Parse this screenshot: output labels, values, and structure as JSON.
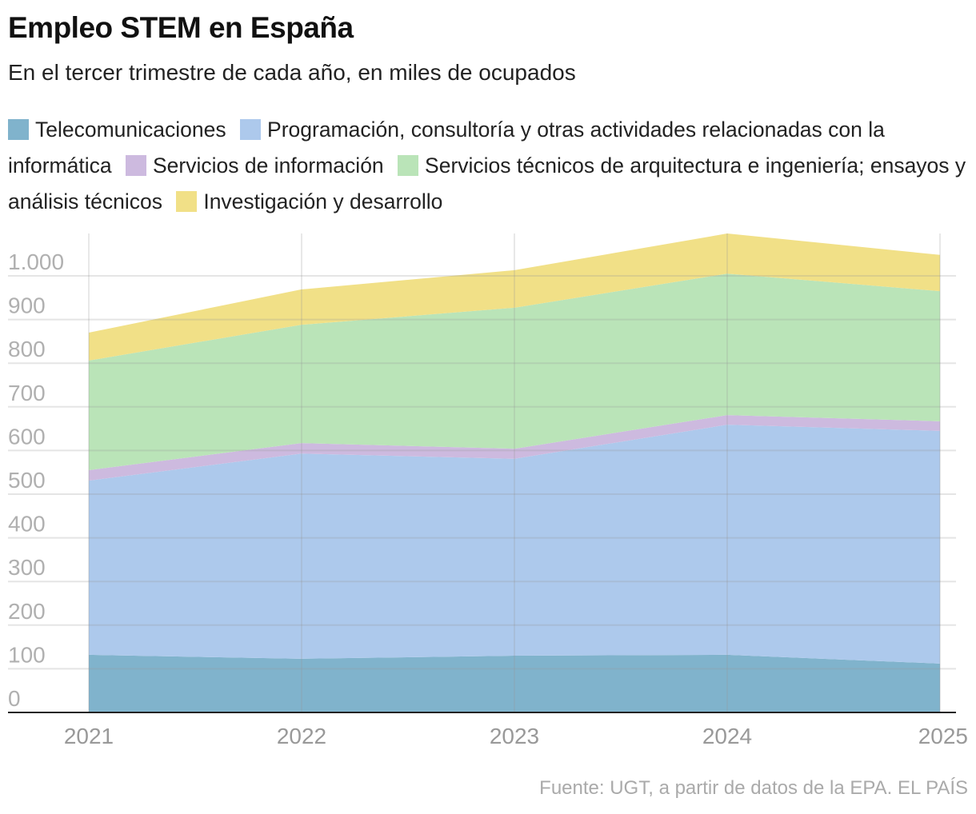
{
  "title": "Empleo STEM en España",
  "subtitle": "En el tercer trimestre de cada año, en miles de ocupados",
  "source": "Fuente: UGT, a partir de datos de la EPA. EL PAÍS",
  "chart_data": {
    "type": "area",
    "stacked": true,
    "categories": [
      "2021",
      "2022",
      "2023",
      "2024",
      "2025"
    ],
    "ylim": [
      0,
      1100
    ],
    "yticks": [
      0,
      100,
      200,
      300,
      400,
      500,
      600,
      700,
      800,
      900,
      1000
    ],
    "ytick_labels": [
      "0",
      "100",
      "200",
      "300",
      "400",
      "500",
      "600",
      "700",
      "800",
      "900",
      "1.000"
    ],
    "grid": true,
    "legend_position": "top",
    "series": [
      {
        "name": "Telecomunicaciones",
        "color": "#80b3cc",
        "values": [
          132,
          123,
          130,
          132,
          112
        ]
      },
      {
        "name": "Programación, consultoría y otras actividades relacionadas con la informática",
        "color": "#adc9ec",
        "values": [
          399,
          470,
          451,
          527,
          533
        ]
      },
      {
        "name": "Servicios de información",
        "color": "#cdbadf",
        "values": [
          24,
          24,
          23,
          22,
          22
        ]
      },
      {
        "name": "Servicios técnicos de arquitectura e ingeniería; ensayos y análisis técnicos",
        "color": "#bae4b8",
        "values": [
          251,
          271,
          323,
          324,
          298
        ]
      },
      {
        "name": "Investigación y desarrollo",
        "color": "#f1e087",
        "values": [
          64,
          81,
          86,
          92,
          83
        ]
      }
    ]
  }
}
